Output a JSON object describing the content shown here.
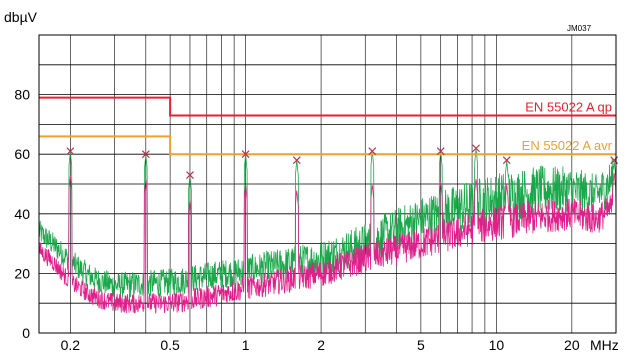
{
  "chart_data": {
    "type": "line",
    "ylabel": "dbµV",
    "xunit": "MHz",
    "code": "JM037",
    "x_scale": "log",
    "xlim": [
      0.15,
      30
    ],
    "ylim": [
      0,
      100
    ],
    "yticks": [
      0,
      20,
      40,
      60,
      80
    ],
    "ygrid": [
      0,
      10,
      20,
      30,
      40,
      50,
      60,
      70,
      80,
      90,
      100
    ],
    "xtick_labels": [
      {
        "v": 0.2,
        "t": "0.2"
      },
      {
        "v": 0.5,
        "t": "0.5"
      },
      {
        "v": 1,
        "t": "1"
      },
      {
        "v": 2,
        "t": "2"
      },
      {
        "v": 5,
        "t": "5"
      },
      {
        "v": 10,
        "t": "10"
      },
      {
        "v": 20,
        "t": "20"
      }
    ],
    "xgrid": [
      0.15,
      0.2,
      0.3,
      0.4,
      0.5,
      0.6,
      0.7,
      0.8,
      0.9,
      1,
      2,
      3,
      4,
      5,
      6,
      7,
      8,
      9,
      10,
      20,
      30
    ],
    "grid": true,
    "limits": [
      {
        "name": "EN 55022 A qp",
        "color": "#e8202a",
        "segments": [
          [
            0.15,
            0.5,
            79
          ],
          [
            0.5,
            30,
            73
          ]
        ]
      },
      {
        "name": "EN 55022 A avr",
        "color": "#f0a030",
        "segments": [
          [
            0.15,
            0.5,
            66
          ],
          [
            0.5,
            30,
            60
          ]
        ]
      }
    ],
    "series": [
      {
        "color": "#1aa84a",
        "floor": [
          [
            0.15,
            34
          ],
          [
            0.17,
            30
          ],
          [
            0.2,
            24
          ],
          [
            0.25,
            18
          ],
          [
            0.3,
            16
          ],
          [
            0.5,
            17
          ],
          [
            0.7,
            19
          ],
          [
            1,
            21
          ],
          [
            2,
            25
          ],
          [
            3,
            30
          ],
          [
            5,
            38
          ],
          [
            8,
            43
          ],
          [
            10,
            45
          ],
          [
            15,
            48
          ],
          [
            20,
            48
          ],
          [
            25,
            46
          ],
          [
            28,
            50
          ],
          [
            30,
            54
          ]
        ],
        "amp": [
          [
            0.15,
            4
          ],
          [
            1,
            5
          ],
          [
            3,
            7
          ],
          [
            10,
            9
          ],
          [
            30,
            7
          ]
        ]
      },
      {
        "color": "#e0208a",
        "floor": [
          [
            0.15,
            28
          ],
          [
            0.17,
            24
          ],
          [
            0.2,
            17
          ],
          [
            0.25,
            12
          ],
          [
            0.3,
            10
          ],
          [
            0.5,
            10
          ],
          [
            0.7,
            12
          ],
          [
            1,
            15
          ],
          [
            2,
            20
          ],
          [
            3,
            25
          ],
          [
            5,
            30
          ],
          [
            8,
            35
          ],
          [
            10,
            37
          ],
          [
            15,
            39
          ],
          [
            20,
            40
          ],
          [
            25,
            38
          ],
          [
            28,
            41
          ],
          [
            30,
            44
          ]
        ],
        "amp": [
          [
            0.15,
            3
          ],
          [
            1,
            4
          ],
          [
            3,
            5
          ],
          [
            10,
            6
          ],
          [
            30,
            5
          ]
        ]
      }
    ],
    "spikes": [
      {
        "f": 0.2,
        "g": 61,
        "m": 53
      },
      {
        "f": 0.4,
        "g": 60,
        "m": 52
      },
      {
        "f": 0.6,
        "g": 53,
        "m": 45
      },
      {
        "f": 1.0,
        "g": 60,
        "m": 50
      },
      {
        "f": 1.6,
        "g": 58,
        "m": 48
      },
      {
        "f": 3.2,
        "g": 61,
        "m": 50
      },
      {
        "f": 6.0,
        "g": 61,
        "m": 51
      },
      {
        "f": 8.3,
        "g": 62,
        "m": 52
      },
      {
        "f": 11,
        "g": 58,
        "m": 50
      },
      {
        "f": 29.5,
        "g": 58,
        "m": 54
      }
    ],
    "markers": [
      {
        "f": 0.2,
        "v": 61
      },
      {
        "f": 0.4,
        "v": 60
      },
      {
        "f": 0.6,
        "v": 53
      },
      {
        "f": 1.0,
        "v": 60
      },
      {
        "f": 1.6,
        "v": 58
      },
      {
        "f": 3.2,
        "v": 61
      },
      {
        "f": 6.0,
        "v": 61
      },
      {
        "f": 8.3,
        "v": 62
      },
      {
        "f": 11,
        "v": 58
      },
      {
        "f": 29.5,
        "v": 58
      }
    ]
  }
}
